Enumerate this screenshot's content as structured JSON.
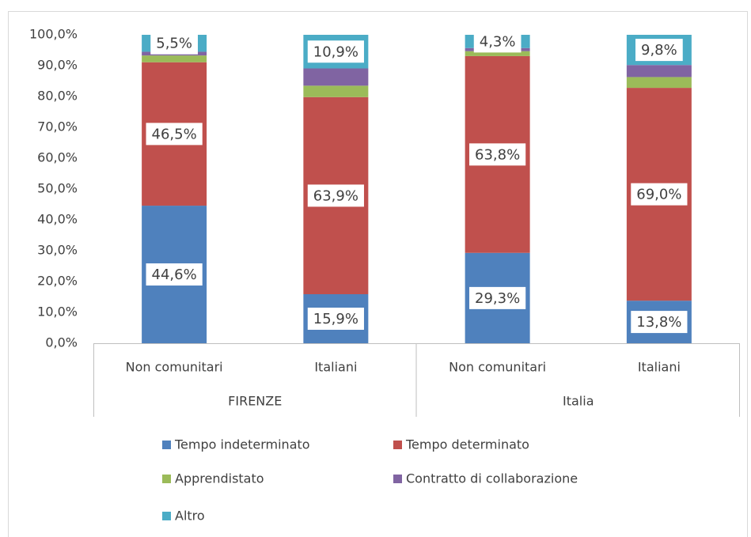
{
  "chart_data": {
    "type": "stacked_bar",
    "categories": [
      "Non comunitari",
      "Italiani",
      "Non comunitari",
      "Italiani"
    ],
    "groups": [
      {
        "name": "FIRENZE",
        "size": 2
      },
      {
        "name": "Italia",
        "size": 2
      }
    ],
    "series": [
      {
        "name": "Tempo indeterminato",
        "color": "#4f81bd",
        "values": [
          44.6,
          15.9,
          29.3,
          13.8
        ],
        "value_labels": [
          "44,6%",
          "15,9%",
          "29,3%",
          "13,8%"
        ]
      },
      {
        "name": "Tempo determinato",
        "color": "#c0504d",
        "values": [
          46.5,
          63.9,
          63.8,
          69.0
        ],
        "value_labels": [
          "46,5%",
          "63,9%",
          "63,8%",
          "69,0%"
        ]
      },
      {
        "name": "Apprendistato",
        "color": "#9bbb59",
        "values": [
          2.2,
          3.7,
          1.6,
          3.5
        ]
      },
      {
        "name": "Contratto di collaborazione",
        "color": "#8064a2",
        "values": [
          1.2,
          5.6,
          1.0,
          3.9
        ]
      },
      {
        "name": "Altro",
        "color": "#4bacc6",
        "values": [
          5.5,
          10.9,
          4.3,
          9.8
        ],
        "value_labels": [
          "5,5%",
          "10,9%",
          "4,3%",
          "9,8%"
        ]
      }
    ],
    "ylim": [
      0,
      100
    ],
    "yticks": [
      {
        "value": 0,
        "label": "0,0%"
      },
      {
        "value": 10,
        "label": "10,0%"
      },
      {
        "value": 20,
        "label": "20,0%"
      },
      {
        "value": 30,
        "label": "30,0%"
      },
      {
        "value": 40,
        "label": "40,0%"
      },
      {
        "value": 50,
        "label": "50,0%"
      },
      {
        "value": 60,
        "label": "60,0%"
      },
      {
        "value": 70,
        "label": "70,0%"
      },
      {
        "value": 80,
        "label": "80,0%"
      },
      {
        "value": 90,
        "label": "90,0%"
      },
      {
        "value": 100,
        "label": "100,0%"
      }
    ],
    "grid": false
  }
}
